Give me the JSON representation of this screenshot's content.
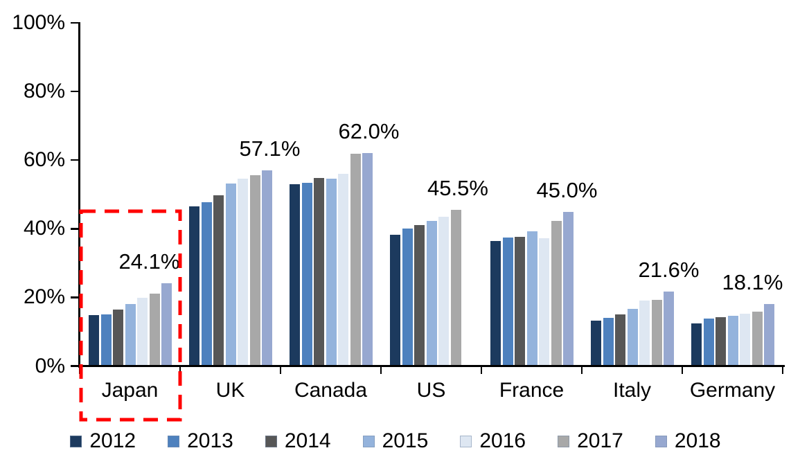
{
  "chart_data": {
    "type": "bar",
    "title": "",
    "categories": [
      "Japan",
      "UK",
      "Canada",
      "US",
      "France",
      "Italy",
      "Germany"
    ],
    "series": [
      {
        "name": "2012",
        "color": "#1C3A5E",
        "values": [
          14.8,
          46.5,
          53.0,
          38.3,
          36.5,
          13.3,
          12.4
        ]
      },
      {
        "name": "2013",
        "color": "#4E81BE",
        "values": [
          15.0,
          47.8,
          53.4,
          40.0,
          37.5,
          14.1,
          13.9
        ]
      },
      {
        "name": "2014",
        "color": "#575757",
        "values": [
          16.5,
          49.8,
          54.8,
          41.0,
          37.6,
          15.1,
          14.3
        ]
      },
      {
        "name": "2015",
        "color": "#94B3DC",
        "values": [
          18.0,
          53.2,
          54.6,
          42.2,
          39.2,
          16.7,
          14.7
        ]
      },
      {
        "name": "2016",
        "color": "#DEE7F2",
        "values": [
          19.8,
          54.6,
          56.0,
          43.5,
          37.2,
          19.0,
          15.3
        ]
      },
      {
        "name": "2017",
        "color": "#A8A8A8",
        "values": [
          21.0,
          55.7,
          61.8,
          45.5,
          42.3,
          19.2,
          15.9
        ]
      },
      {
        "name": "2018",
        "color": "#97A8D0",
        "values": [
          24.1,
          57.1,
          62.0,
          null,
          45.0,
          21.6,
          18.1
        ]
      }
    ],
    "data_labels": [
      "24.1%",
      "57.1%",
      "62.0%",
      "45.5%",
      "45.0%",
      "21.6%",
      "18.1%"
    ],
    "y_ticks": [
      "0%",
      "20%",
      "40%",
      "60%",
      "80%",
      "100%"
    ],
    "ylim": [
      0,
      100
    ],
    "grid": false,
    "legend_position": "bottom",
    "legend_entries": [
      "2012",
      "2013",
      "2014",
      "2015",
      "2016",
      "2017",
      "2018"
    ],
    "highlight": {
      "category": "Japan",
      "style": "red-dashed-box",
      "color": "#FF0000"
    },
    "axis_color": "#000000"
  }
}
